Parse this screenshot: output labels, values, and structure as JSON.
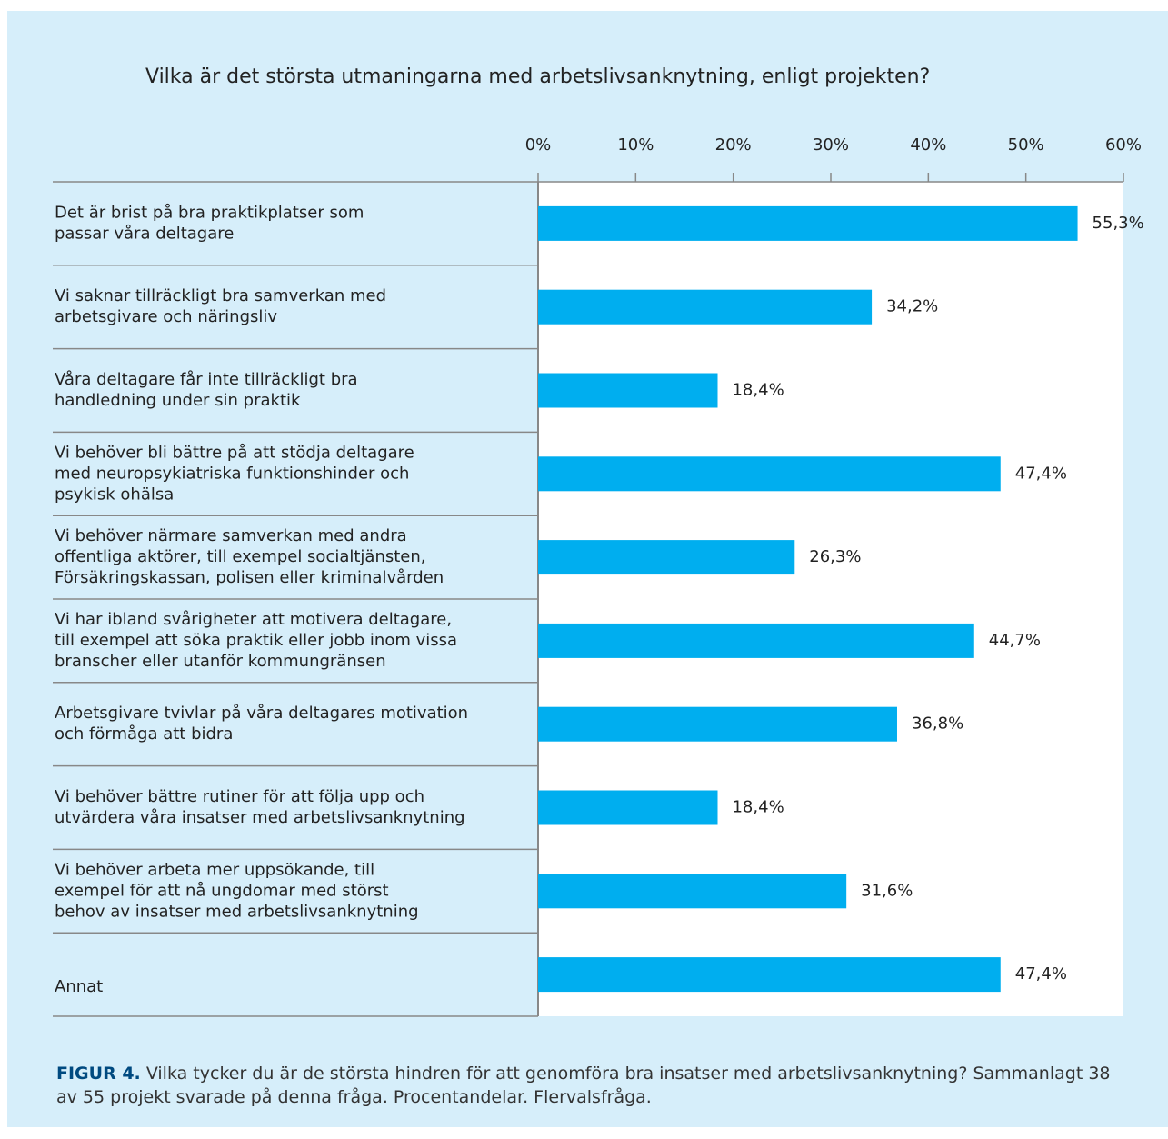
{
  "chart_data": {
    "type": "bar",
    "orientation": "horizontal",
    "title": "Vilka är det största utmaningarna med arbetslivsanknytning, enligt projekten?",
    "categories": [
      [
        "Det är brist på bra praktikplatser som",
        "passar våra deltagare"
      ],
      [
        "Vi saknar tillräckligt bra samverkan med",
        "arbetsgivare och näringsliv"
      ],
      [
        "Våra deltagare får inte tillräckligt bra",
        "handledning under sin praktik"
      ],
      [
        "Vi behöver bli bättre på att stödja deltagare",
        "med neuropsykiatriska funktionshinder och",
        "psykisk ohälsa"
      ],
      [
        "Vi behöver närmare samverkan med andra",
        "offentliga aktörer, till exempel socialtjänsten,",
        "Försäkringskassan, polisen eller kriminalvården"
      ],
      [
        "Vi har ibland svårigheter att motivera deltagare,",
        "till exempel att söka praktik eller jobb inom vissa",
        "branscher eller utanför kommungränsen"
      ],
      [
        "Arbetsgivare tvivlar på våra deltagares motivation",
        "och förmåga att bidra"
      ],
      [
        "Vi behöver bättre rutiner för att följa upp och",
        "utvärdera våra insatser med arbetslivsanknytning"
      ],
      [
        "Vi behöver arbeta mer uppsökande, till",
        "exempel för att nå ungdomar med störst",
        "behov av insatser med arbetslivsanknytning"
      ],
      [
        "Annat"
      ]
    ],
    "values": [
      55.3,
      34.2,
      18.4,
      47.4,
      26.3,
      44.7,
      36.8,
      18.4,
      31.6,
      47.4
    ],
    "value_labels": [
      "55,3%",
      "34,2%",
      "18,4%",
      "47,4%",
      "26,3%",
      "44,7%",
      "36,8%",
      "18,4%",
      "31,6%",
      "47,4%"
    ],
    "color": "#00aeef",
    "xlim": [
      0,
      60
    ],
    "xticks": [
      {
        "value": 0,
        "label": "0%"
      },
      {
        "value": 10,
        "label": "10%"
      },
      {
        "value": 20,
        "label": "20%"
      },
      {
        "value": 30,
        "label": "30%"
      },
      {
        "value": 40,
        "label": "40%"
      },
      {
        "value": 50,
        "label": "50%"
      },
      {
        "value": 60,
        "label": "60%"
      }
    ],
    "caption_label": "FIGUR 4.",
    "caption": "Vilka tycker du är de största hindren för att genomföra bra insatser med arbetslivsanknytning? Sammanlagt 38 av 55 projekt svarade på denna fråga. Procentandelar. Flervalsfråga."
  }
}
